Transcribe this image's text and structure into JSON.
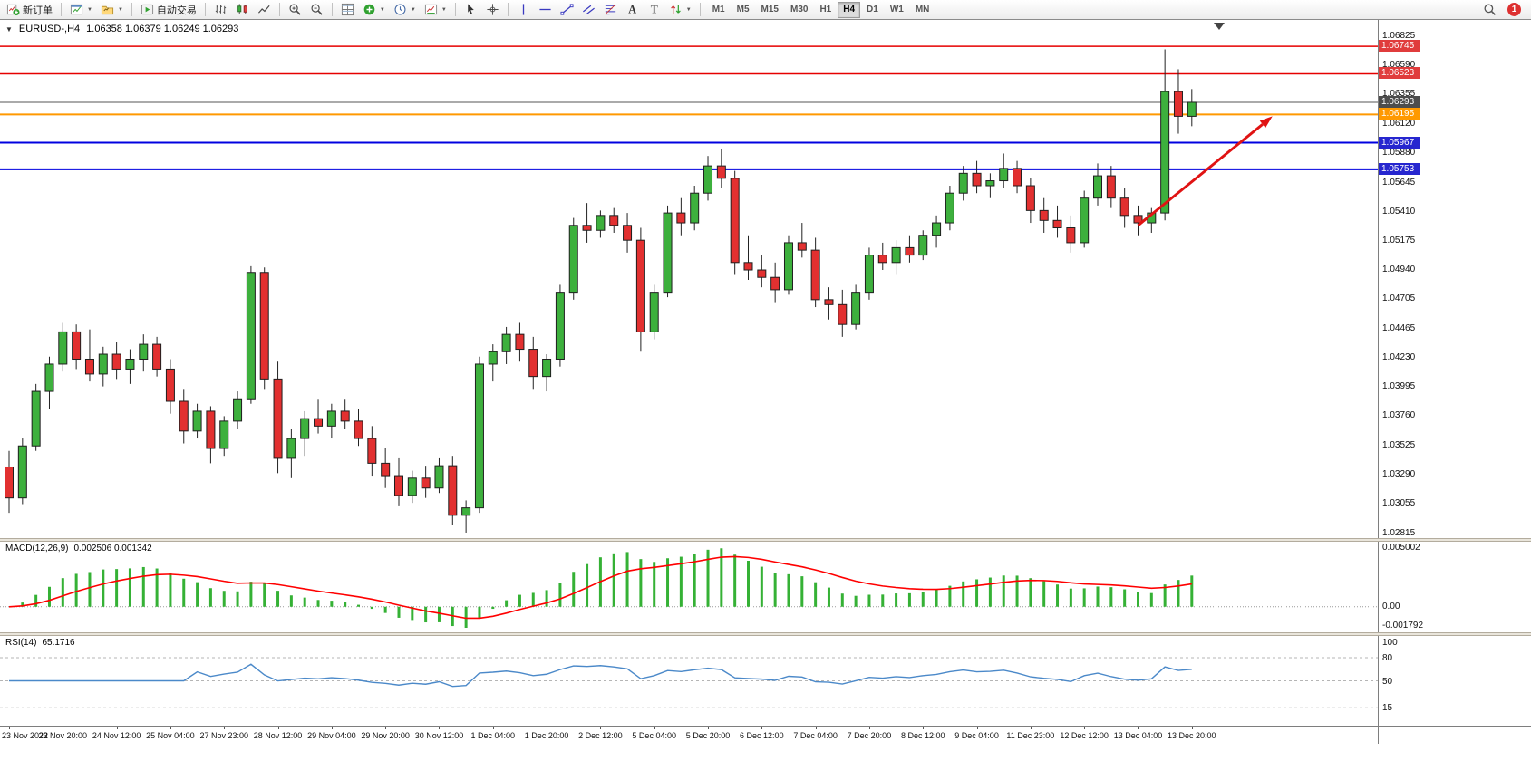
{
  "toolbar": {
    "new_order_label": "新订单",
    "auto_trading_label": "自动交易",
    "timeframes": [
      "M1",
      "M5",
      "M15",
      "M30",
      "H1",
      "H4",
      "D1",
      "W1",
      "MN"
    ],
    "active_timeframe": "H4",
    "notification_count": "1",
    "icons": [
      "new-order",
      "new-chart",
      "profiles",
      "auto-trading",
      "bar-chart",
      "candlestick-chart",
      "line-chart",
      "zoom-in",
      "zoom-out",
      "tile-windows",
      "indicators",
      "periods",
      "templates",
      "cursor",
      "crosshair",
      "vertical-line",
      "horizontal-line",
      "trendline",
      "channel",
      "fibonacci",
      "text",
      "label",
      "arrows",
      "search",
      "notification"
    ]
  },
  "chart": {
    "collapse_caret": "▼",
    "symbol_period": "EURUSD-,H4",
    "ohlc_text": "1.06358 1.06379 1.06249 1.06293"
  },
  "chart_data": {
    "type": "candlestick",
    "symbol": "EURUSD-",
    "timeframe": "H4",
    "open": 1.06358,
    "high": 1.06379,
    "low": 1.06249,
    "close": 1.06293,
    "price_scale": {
      "top": 1.06958,
      "bottom": 1.02776
    },
    "price_axis_ticks": [
      "1.06825",
      "1.06590",
      "1.06355",
      "1.06120",
      "1.05880",
      "1.05645",
      "1.05410",
      "1.05175",
      "1.04940",
      "1.04705",
      "1.04465",
      "1.04230",
      "1.03995",
      "1.03760",
      "1.03525",
      "1.03290",
      "1.03055",
      "1.02815"
    ],
    "levels": [
      {
        "label": "1.06745",
        "value": 1.06745,
        "color": "#e60000",
        "width": 1.6,
        "box": "#e03c3c",
        "name": "resistance-line-1"
      },
      {
        "label": "1.06523",
        "value": 1.06523,
        "color": "#e60000",
        "width": 1.6,
        "box": "#e03c3c",
        "name": "resistance-line-2"
      },
      {
        "label": "1.06293",
        "value": 1.06293,
        "color": "#555555",
        "width": 1,
        "box": "#4d4d4d",
        "name": "current-price-line"
      },
      {
        "label": "1.06195",
        "value": 1.06195,
        "color": "#ff9900",
        "width": 2,
        "box": "#ff9900",
        "name": "orange-level-line"
      },
      {
        "label": "1.05967",
        "value": 1.05967,
        "color": "#0000e0",
        "width": 2,
        "box": "#2626cf",
        "name": "support-line-1"
      },
      {
        "label": "1.05753",
        "value": 1.05753,
        "color": "#0000e0",
        "width": 2,
        "box": "#2626cf",
        "name": "support-line-2"
      }
    ],
    "arrow": {
      "from_bar": 84,
      "from_price": 1.053,
      "to_bar": 94,
      "to_price": 1.0618,
      "color": "#e01313",
      "width": 3
    },
    "time_axis": [
      "23 Nov 2022",
      "23 Nov 20:00",
      "24 Nov 12:00",
      "25 Nov 04:00",
      "27 Nov 23:00",
      "28 Nov 12:00",
      "29 Nov 04:00",
      "29 Nov 20:00",
      "30 Nov 12:00",
      "1 Dec 04:00",
      "1 Dec 20:00",
      "2 Dec 12:00",
      "5 Dec 04:00",
      "5 Dec 20:00",
      "6 Dec 12:00",
      "7 Dec 04:00",
      "7 Dec 20:00",
      "8 Dec 12:00",
      "9 Dec 04:00",
      "11 Dec 23:00",
      "12 Dec 12:00",
      "13 Dec 04:00",
      "13 Dec 20:00"
    ],
    "candles_ohlc": [
      [
        1.0335,
        1.0348,
        1.0298,
        1.031
      ],
      [
        1.031,
        1.0358,
        1.0305,
        1.0352
      ],
      [
        1.0352,
        1.0402,
        1.0348,
        1.0396
      ],
      [
        1.0396,
        1.0424,
        1.0382,
        1.0418
      ],
      [
        1.0418,
        1.0452,
        1.0412,
        1.0444
      ],
      [
        1.0444,
        1.045,
        1.0414,
        1.0422
      ],
      [
        1.0422,
        1.0446,
        1.0404,
        1.041
      ],
      [
        1.041,
        1.0432,
        1.04,
        1.0426
      ],
      [
        1.0426,
        1.0436,
        1.0406,
        1.0414
      ],
      [
        1.0414,
        1.043,
        1.0402,
        1.0422
      ],
      [
        1.0422,
        1.0442,
        1.0412,
        1.0434
      ],
      [
        1.0434,
        1.044,
        1.0408,
        1.0414
      ],
      [
        1.0414,
        1.0422,
        1.0378,
        1.0388
      ],
      [
        1.0388,
        1.0398,
        1.0354,
        1.0364
      ],
      [
        1.0364,
        1.0386,
        1.0358,
        1.038
      ],
      [
        1.038,
        1.0384,
        1.0338,
        1.035
      ],
      [
        1.035,
        1.0376,
        1.0344,
        1.0372
      ],
      [
        1.0372,
        1.0396,
        1.0366,
        1.039
      ],
      [
        1.039,
        1.0497,
        1.0386,
        1.0492
      ],
      [
        1.0492,
        1.0496,
        1.0398,
        1.0406
      ],
      [
        1.0406,
        1.042,
        1.033,
        1.0342
      ],
      [
        1.0342,
        1.0366,
        1.0326,
        1.0358
      ],
      [
        1.0358,
        1.038,
        1.0344,
        1.0374
      ],
      [
        1.0374,
        1.039,
        1.0362,
        1.0368
      ],
      [
        1.0368,
        1.0386,
        1.0358,
        1.038
      ],
      [
        1.038,
        1.039,
        1.0366,
        1.0372
      ],
      [
        1.0372,
        1.0382,
        1.0352,
        1.0358
      ],
      [
        1.0358,
        1.0368,
        1.0328,
        1.0338
      ],
      [
        1.0338,
        1.035,
        1.0318,
        1.0328
      ],
      [
        1.0328,
        1.0342,
        1.0304,
        1.0312
      ],
      [
        1.0312,
        1.0332,
        1.0306,
        1.0326
      ],
      [
        1.0326,
        1.0336,
        1.031,
        1.0318
      ],
      [
        1.0318,
        1.0342,
        1.0314,
        1.0336
      ],
      [
        1.0336,
        1.0344,
        1.0288,
        1.0296
      ],
      [
        1.0296,
        1.0308,
        1.0282,
        1.0302
      ],
      [
        1.0302,
        1.0424,
        1.0298,
        1.0418
      ],
      [
        1.0418,
        1.0434,
        1.0404,
        1.0428
      ],
      [
        1.0428,
        1.0448,
        1.0418,
        1.0442
      ],
      [
        1.0442,
        1.0452,
        1.042,
        1.043
      ],
      [
        1.043,
        1.044,
        1.0398,
        1.0408
      ],
      [
        1.0408,
        1.0426,
        1.0396,
        1.0422
      ],
      [
        1.0422,
        1.0482,
        1.0416,
        1.0476
      ],
      [
        1.0476,
        1.0536,
        1.047,
        1.053
      ],
      [
        1.053,
        1.0548,
        1.0516,
        1.0526
      ],
      [
        1.0526,
        1.0542,
        1.052,
        1.0538
      ],
      [
        1.0538,
        1.0544,
        1.0524,
        1.053
      ],
      [
        1.053,
        1.054,
        1.0508,
        1.0518
      ],
      [
        1.0518,
        1.0528,
        1.0428,
        1.0444
      ],
      [
        1.0444,
        1.0482,
        1.0438,
        1.0476
      ],
      [
        1.0476,
        1.0546,
        1.0472,
        1.054
      ],
      [
        1.054,
        1.0552,
        1.0522,
        1.0532
      ],
      [
        1.0532,
        1.0562,
        1.0526,
        1.0556
      ],
      [
        1.0556,
        1.0586,
        1.055,
        1.0578
      ],
      [
        1.0578,
        1.0592,
        1.056,
        1.0568
      ],
      [
        1.0568,
        1.0574,
        1.049,
        1.05
      ],
      [
        1.05,
        1.0522,
        1.0486,
        1.0494
      ],
      [
        1.0494,
        1.0506,
        1.048,
        1.0488
      ],
      [
        1.0488,
        1.05,
        1.0468,
        1.0478
      ],
      [
        1.0478,
        1.0522,
        1.0474,
        1.0516
      ],
      [
        1.0516,
        1.0532,
        1.0504,
        1.051
      ],
      [
        1.051,
        1.052,
        1.0464,
        1.047
      ],
      [
        1.047,
        1.048,
        1.0454,
        1.0466
      ],
      [
        1.0466,
        1.0478,
        1.044,
        1.045
      ],
      [
        1.045,
        1.0482,
        1.0446,
        1.0476
      ],
      [
        1.0476,
        1.0512,
        1.047,
        1.0506
      ],
      [
        1.0506,
        1.0516,
        1.0494,
        1.05
      ],
      [
        1.05,
        1.0518,
        1.049,
        1.0512
      ],
      [
        1.0512,
        1.0522,
        1.05,
        1.0506
      ],
      [
        1.0506,
        1.0526,
        1.0502,
        1.0522
      ],
      [
        1.0522,
        1.0538,
        1.0512,
        1.0532
      ],
      [
        1.0532,
        1.0562,
        1.0526,
        1.0556
      ],
      [
        1.0556,
        1.0578,
        1.055,
        1.0572
      ],
      [
        1.0572,
        1.0582,
        1.0556,
        1.0562
      ],
      [
        1.0562,
        1.0572,
        1.0552,
        1.0566
      ],
      [
        1.0566,
        1.0588,
        1.056,
        1.0576
      ],
      [
        1.0576,
        1.0582,
        1.0556,
        1.0562
      ],
      [
        1.0562,
        1.0568,
        1.0532,
        1.0542
      ],
      [
        1.0542,
        1.0552,
        1.0524,
        1.0534
      ],
      [
        1.0534,
        1.0546,
        1.052,
        1.0528
      ],
      [
        1.0528,
        1.0538,
        1.0508,
        1.0516
      ],
      [
        1.0516,
        1.0558,
        1.0512,
        1.0552
      ],
      [
        1.0552,
        1.058,
        1.0546,
        1.057
      ],
      [
        1.057,
        1.0578,
        1.0544,
        1.0552
      ],
      [
        1.0552,
        1.056,
        1.0528,
        1.0538
      ],
      [
        1.0538,
        1.0546,
        1.0522,
        1.0532
      ],
      [
        1.0532,
        1.0544,
        1.0524,
        1.054
      ],
      [
        1.054,
        1.0672,
        1.0534,
        1.0638
      ],
      [
        1.0638,
        1.0656,
        1.0604,
        1.0618
      ],
      [
        1.0618,
        1.064,
        1.061,
        1.06293
      ]
    ],
    "macd": {
      "label": "MACD(12,26,9)",
      "values_text": "0.002506 0.001342",
      "fast": 12,
      "slow": 26,
      "signal": 9,
      "axis_labels": [
        "0.005002",
        "0.00",
        "-0.001792"
      ],
      "histogram_color": "#35b135",
      "signal_color": "#ff0000"
    },
    "rsi": {
      "label": "RSI(14)",
      "value_text": "65.1716",
      "period": 14,
      "axis_labels": [
        "100",
        "80",
        "50",
        "15"
      ],
      "levels": [
        80,
        50,
        15
      ],
      "line_color": "#4b89c9"
    },
    "colors": {
      "bull": "#3db03d",
      "bear": "#e23030",
      "wick": "#222222",
      "outline": "#1f1f1f",
      "background": "#ffffff"
    }
  }
}
